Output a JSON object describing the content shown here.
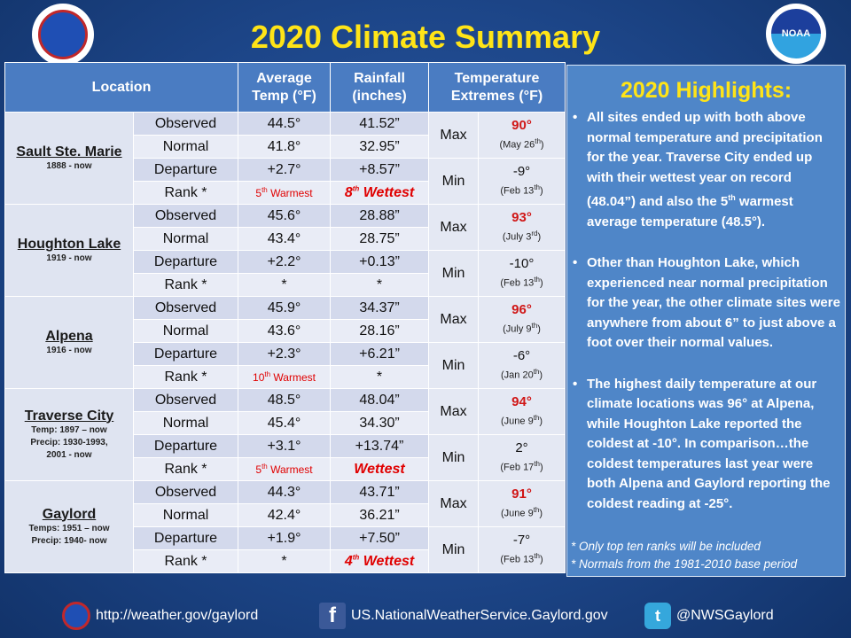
{
  "title": "2020 Climate Summary",
  "logos": {
    "left": "nws-logo",
    "right_text": "NOAA"
  },
  "table": {
    "headers": {
      "location": "Location",
      "avg_temp": [
        "Average",
        "Temp (°F)"
      ],
      "rainfall": [
        "Rainfall",
        "(inches)"
      ],
      "temp_ext": [
        "Temperature",
        "Extremes (°F)"
      ]
    },
    "row_labels": [
      "Observed",
      "Normal",
      "Departure",
      "Rank *"
    ],
    "ext_labels": {
      "max": "Max",
      "min": "Min"
    },
    "locations": [
      {
        "name": "Sault Ste. Marie",
        "years": [
          "1888 - now"
        ],
        "temp": [
          "44.5°",
          "41.8°",
          "+2.7°",
          "5th Warmest"
        ],
        "rain": [
          "41.52”",
          "32.95”",
          "+8.57”",
          "8th Wettest"
        ],
        "max": "90°",
        "max_date": "(May 26th)",
        "min": "-9°",
        "min_date": "(Feb 13th)"
      },
      {
        "name": "Houghton Lake",
        "years": [
          "1919 - now"
        ],
        "temp": [
          "45.6°",
          "43.4°",
          "+2.2°",
          "*"
        ],
        "rain": [
          "28.88”",
          "28.75”",
          "+0.13”",
          "*"
        ],
        "max": "93°",
        "max_date": "(July 3rd)",
        "min": "-10°",
        "min_date": "(Feb 13th)"
      },
      {
        "name": "Alpena",
        "years": [
          "1916 - now"
        ],
        "temp": [
          "45.9°",
          "43.6°",
          "+2.3°",
          "10th Warmest"
        ],
        "rain": [
          "34.37”",
          "28.16”",
          "+6.21”",
          "*"
        ],
        "max": "96°",
        "max_date": "(July 9th)",
        "min": "-6°",
        "min_date": "(Jan 20th)"
      },
      {
        "name": "Traverse City",
        "years": [
          "Temp: 1897 – now",
          "Precip: 1930-1993,",
          "2001 - now"
        ],
        "temp": [
          "48.5°",
          "45.4°",
          "+3.1°",
          "5th Warmest"
        ],
        "rain": [
          "48.04”",
          "34.30”",
          "+13.74”",
          "Wettest"
        ],
        "max": "94°",
        "max_date": "(June 9th)",
        "min": "2°",
        "min_date": "(Feb 17th)"
      },
      {
        "name": "Gaylord",
        "years": [
          "Temps: 1951 – now",
          "Precip: 1940- now"
        ],
        "temp": [
          "44.3°",
          "42.4°",
          "+1.9°",
          "*"
        ],
        "rain": [
          "43.71”",
          "36.21”",
          "+7.50”",
          "4th Wettest"
        ],
        "max": "91°",
        "max_date": "(June 9th)",
        "min": "-7°",
        "min_date": "(Feb 13th)"
      }
    ]
  },
  "highlights": {
    "title": "2020 Highlights:",
    "bullets": [
      "All sites ended up with both above normal temperature and precipitation for the year. Traverse City ended up with their wettest year on record (48.04”) and also the 5th warmest average temperature (48.5°).",
      "Other than Houghton Lake, which experienced near normal precipitation for the year, the other climate sites were anywhere from about 6” to just above a foot over their normal values.",
      "The highest daily temperature at our climate locations was 96° at Alpena, while Houghton Lake reported the coldest at -10°. In comparison…the coldest temperatures last year were both Alpena and Gaylord  reporting the coldest reading at -25°."
    ],
    "notes": [
      "*  Only top ten ranks will be included",
      "*  Normals from the 1981-2010 base period"
    ]
  },
  "footer": {
    "website": "http://weather.gov/gaylord",
    "facebook": "US.NationalWeatherService.Gaylord.gov",
    "twitter": "@NWSGaylord",
    "facebook_glyph": "f",
    "twitter_glyph": "t"
  }
}
